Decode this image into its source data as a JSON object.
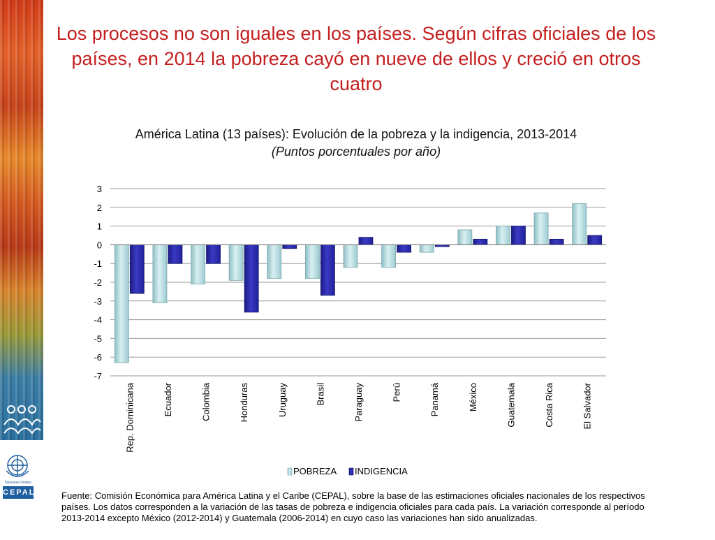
{
  "slide": {
    "title": "Los procesos no son iguales en los países. Según cifras oficiales de los países, en 2014 la pobreza cayó en nueve de ellos y creció en otros cuatro"
  },
  "chart_data": {
    "type": "bar",
    "title": "América Latina (13 países): Evolución de la pobreza y la indigencia, 2013-2014",
    "subtitle": "(Puntos porcentuales por año)",
    "categories": [
      "Rep. Dominicana",
      "Ecuador",
      "Colombia",
      "Honduras",
      "Uruguay",
      "Brasil",
      "Paraguay",
      "Perú",
      "Panamá",
      "México",
      "Guatemala",
      "Costa Rica",
      "El Salvador"
    ],
    "series": [
      {
        "name": "POBREZA",
        "color": "#bfe3e6",
        "values": [
          -6.3,
          -3.1,
          -2.1,
          -1.9,
          -1.8,
          -1.8,
          -1.2,
          -1.2,
          -0.4,
          0.8,
          1.0,
          1.7,
          2.2
        ]
      },
      {
        "name": "INDIGENCIA",
        "color": "#2a2aa8",
        "values": [
          -2.6,
          -1.0,
          -1.0,
          -3.6,
          -0.2,
          -2.7,
          0.4,
          -0.4,
          -0.1,
          0.3,
          1.0,
          0.3,
          0.5
        ]
      }
    ],
    "ylim": [
      -7,
      3
    ],
    "yticks": [
      3,
      2,
      1,
      0,
      -1,
      -2,
      -3,
      -4,
      -5,
      -6,
      -7
    ],
    "grid": true,
    "legend_position": "bottom"
  },
  "footer": {
    "source": "Fuente: Comisión Económica para América Latina y el Caribe (CEPAL), sobre la base de las estimaciones oficiales nacionales de los respectivos países. Los datos corresponden a la variación de las tasas de pobreza e indigencia oficiales para cada país. La variación corresponde al período 2013-2014 excepto México (2012-2014) y Guatemala (2006-2014) en cuyo caso las variaciones han sido anualizadas."
  },
  "branding": {
    "org_label": "CEPAL",
    "un_label": "Naciones Unidas"
  }
}
